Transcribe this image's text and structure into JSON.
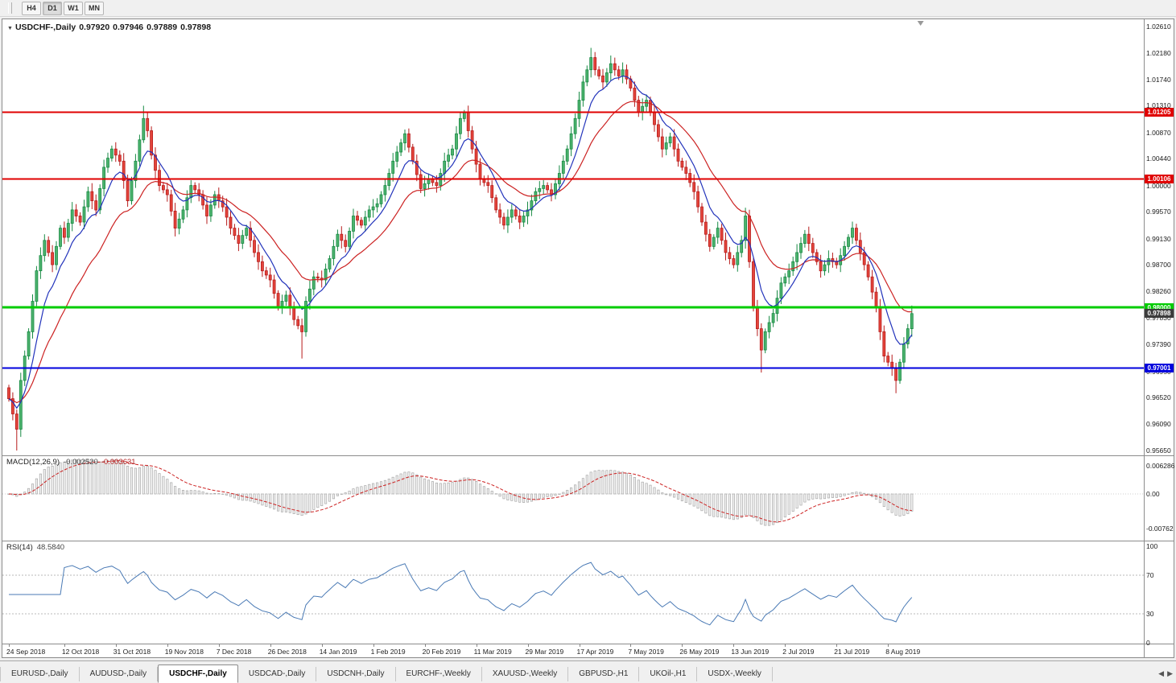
{
  "toolbar": {
    "timeframes": [
      {
        "label": "H4",
        "active": false
      },
      {
        "label": "D1",
        "active": true
      },
      {
        "label": "W1",
        "active": false
      },
      {
        "label": "MN",
        "active": false
      }
    ]
  },
  "title": {
    "symbol": "USDCHF-,Daily",
    "open": "0.97920",
    "high": "0.97946",
    "low": "0.97889",
    "close": "0.97898"
  },
  "price_axis": {
    "labels": [
      "1.02610",
      "1.02180",
      "1.01740",
      "1.01310",
      "1.00870",
      "1.00440",
      "1.00000",
      "0.99570",
      "0.99130",
      "0.98700",
      "0.98260",
      "0.97830",
      "0.97390",
      "0.96950",
      "0.96520",
      "0.96090",
      "0.95650"
    ]
  },
  "levels": [
    {
      "price": 1.01205,
      "label": "1.01205",
      "color": "#e00000",
      "thickness": 2
    },
    {
      "price": 1.00106,
      "label": "1.00106",
      "color": "#e00000",
      "thickness": 2
    },
    {
      "price": 0.98,
      "label": "0.98000",
      "color": "#00cc00",
      "thickness": 3
    },
    {
      "price": 0.97001,
      "label": "0.97001",
      "color": "#0000dd",
      "thickness": 2
    }
  ],
  "current_price": {
    "label": "0.97898",
    "value": 0.97898,
    "color": "#3c3c3c"
  },
  "macd": {
    "name": "MACD(12,26,9)",
    "main_value": "-0.002520",
    "signal_value": "-0.003631",
    "axis_labels": [
      {
        "text": "0.006286",
        "value": 0.006286
      },
      {
        "text": "0.00",
        "value": 0
      },
      {
        "text": "-0.00762",
        "value": -0.00762
      }
    ]
  },
  "rsi": {
    "name": "RSI(14)",
    "value": "48.5840",
    "axis_labels": [
      {
        "text": "100",
        "value": 100
      },
      {
        "text": "70",
        "value": 70
      },
      {
        "text": "30",
        "value": 30
      },
      {
        "text": "0",
        "value": 0
      }
    ],
    "levels": [
      70,
      30
    ]
  },
  "tabs": [
    {
      "label": "EURUSD-,Daily",
      "active": false
    },
    {
      "label": "AUDUSD-,Daily",
      "active": false
    },
    {
      "label": "USDCHF-,Daily",
      "active": true
    },
    {
      "label": "USDCAD-,Daily",
      "active": false
    },
    {
      "label": "USDCNH-,Daily",
      "active": false
    },
    {
      "label": "EURCHF-,Weekly",
      "active": false
    },
    {
      "label": "XAUUSD-,Weekly",
      "active": false
    },
    {
      "label": "GBPUSD-,H1",
      "active": false
    },
    {
      "label": "UKOil-,H1",
      "active": false
    },
    {
      "label": "USDX-,Weekly",
      "active": false
    }
  ],
  "colors": {
    "up_fill": "#4db36e",
    "up_stroke": "#188a44",
    "down_fill": "#e4453b",
    "down_stroke": "#b71c1c",
    "ma_fast": "#2233bb",
    "ma_slow": "#cc2222",
    "macd_hist_fill": "#f2f2f2",
    "macd_hist_stroke": "#a8a8a8",
    "macd_signal": "#cc2222",
    "rsi_line": "#4a7ab5",
    "axis_line": "#8c8c8c"
  },
  "chart_data": {
    "type": "candlestick",
    "symbol": "USDCHF",
    "timeframe": "Daily",
    "title": "USDCHF-,Daily",
    "ohlc_current": {
      "open": 0.9792,
      "high": 0.97946,
      "low": 0.97889,
      "close": 0.97898
    },
    "y_range": [
      0.9565,
      1.0261
    ],
    "macd_range": [
      -0.00762,
      0.006286
    ],
    "rsi_range": [
      0,
      100
    ],
    "ma_periods": [
      8,
      21
    ],
    "macd_params": [
      12,
      26,
      9
    ],
    "rsi_period": 14,
    "horizontal_levels": [
      1.01205,
      1.00106,
      0.98,
      0.97001
    ],
    "date_labels": [
      [
        0,
        "24 Sep 2018"
      ],
      [
        14,
        "12 Oct 2018"
      ],
      [
        27,
        "31 Oct 2018"
      ],
      [
        40,
        "19 Nov 2018"
      ],
      [
        53,
        "7 Dec 2018"
      ],
      [
        66,
        "26 Dec 2018"
      ],
      [
        79,
        "14 Jan 2019"
      ],
      [
        92,
        "1 Feb 2019"
      ],
      [
        105,
        "20 Feb 2019"
      ],
      [
        118,
        "11 Mar 2019"
      ],
      [
        131,
        "29 Mar 2019"
      ],
      [
        144,
        "17 Apr 2019"
      ],
      [
        157,
        "7 May 2019"
      ],
      [
        170,
        "26 May 2019"
      ],
      [
        183,
        "13 Jun 2019"
      ],
      [
        196,
        "2 Jul 2019"
      ],
      [
        209,
        "21 Jul 2019"
      ],
      [
        222,
        "8 Aug 2019"
      ]
    ],
    "closes": [
      0.965,
      0.9625,
      0.96,
      0.968,
      0.972,
      0.976,
      0.981,
      0.986,
      0.9885,
      0.991,
      0.989,
      0.987,
      0.99,
      0.993,
      0.9915,
      0.9938,
      0.996,
      0.995,
      0.994,
      0.9965,
      0.999,
      0.9975,
      0.996,
      0.9995,
      1.003,
      1.0045,
      1.006,
      1.005,
      1.004,
      1.0008,
      0.9975,
      1.0008,
      1.004,
      1.0075,
      1.011,
      1.009,
      1.005,
      1.0025,
      1.0,
      0.9993,
      0.9985,
      0.9958,
      0.993,
      0.9945,
      0.996,
      0.998,
      1.0,
      0.9993,
      0.9985,
      0.9968,
      0.995,
      0.9968,
      0.9985,
      0.9975,
      0.9965,
      0.9948,
      0.993,
      0.9918,
      0.9905,
      0.9918,
      0.993,
      0.991,
      0.989,
      0.9875,
      0.986,
      0.9853,
      0.9845,
      0.9823,
      0.98,
      0.981,
      0.982,
      0.98,
      0.978,
      0.977,
      0.976,
      0.981,
      0.983,
      0.985,
      0.9848,
      0.9845,
      0.9863,
      0.988,
      0.99,
      0.992,
      0.991,
      0.99,
      0.9925,
      0.995,
      0.9943,
      0.9935,
      0.9948,
      0.996,
      0.9965,
      0.997,
      0.9985,
      1.0,
      1.002,
      1.004,
      1.0055,
      1.007,
      1.0085,
      1.0063,
      1.004,
      1.0018,
      0.9995,
      1.0003,
      1.001,
      1.0005,
      1.0,
      1.002,
      1.004,
      1.005,
      1.006,
      1.0085,
      1.011,
      1.012,
      1.009,
      1.006,
      1.0035,
      1.001,
      1.0005,
      1.0,
      0.998,
      0.996,
      0.9948,
      0.9935,
      0.9948,
      0.996,
      0.995,
      0.994,
      0.995,
      0.996,
      0.9975,
      0.999,
      0.9995,
      1.0,
      0.9993,
      0.9985,
      1.0003,
      1.002,
      1.004,
      1.006,
      1.0085,
      1.011,
      1.014,
      1.017,
      1.019,
      1.021,
      1.019,
      1.018,
      1.017,
      1.0185,
      1.02,
      1.019,
      1.018,
      1.019,
      1.0175,
      1.016,
      1.014,
      1.012,
      1.013,
      1.014,
      1.012,
      1.01,
      1.008,
      1.006,
      1.007,
      1.008,
      1.006,
      1.004,
      1.003,
      1.002,
      1.0005,
      0.999,
      0.9965,
      0.994,
      0.992,
      0.99,
      0.9915,
      0.993,
      0.991,
      0.989,
      0.988,
      0.987,
      0.989,
      0.991,
      0.995,
      0.9875,
      0.98,
      0.9765,
      0.973,
      0.976,
      0.9775,
      0.979,
      0.9815,
      0.984,
      0.985,
      0.986,
      0.9875,
      0.989,
      0.9905,
      0.992,
      0.9905,
      0.989,
      0.9875,
      0.986,
      0.987,
      0.988,
      0.9875,
      0.987,
      0.9885,
      0.99,
      0.9915,
      0.993,
      0.991,
      0.989,
      0.987,
      0.985,
      0.9825,
      0.98,
      0.976,
      0.972,
      0.971,
      0.97,
      0.968,
      0.971,
      0.974,
      0.9765,
      0.97898
    ],
    "wick_overrides": {
      "2": {
        "low": 0.9565
      },
      "34": {
        "high": 1.0131
      },
      "74": {
        "low": 0.9716
      },
      "100": {
        "high": 1.0092
      },
      "115": {
        "high": 1.0124
      },
      "147": {
        "high": 1.0226
      },
      "190": {
        "low": 0.9693
      },
      "224": {
        "low": 0.9659
      }
    }
  }
}
